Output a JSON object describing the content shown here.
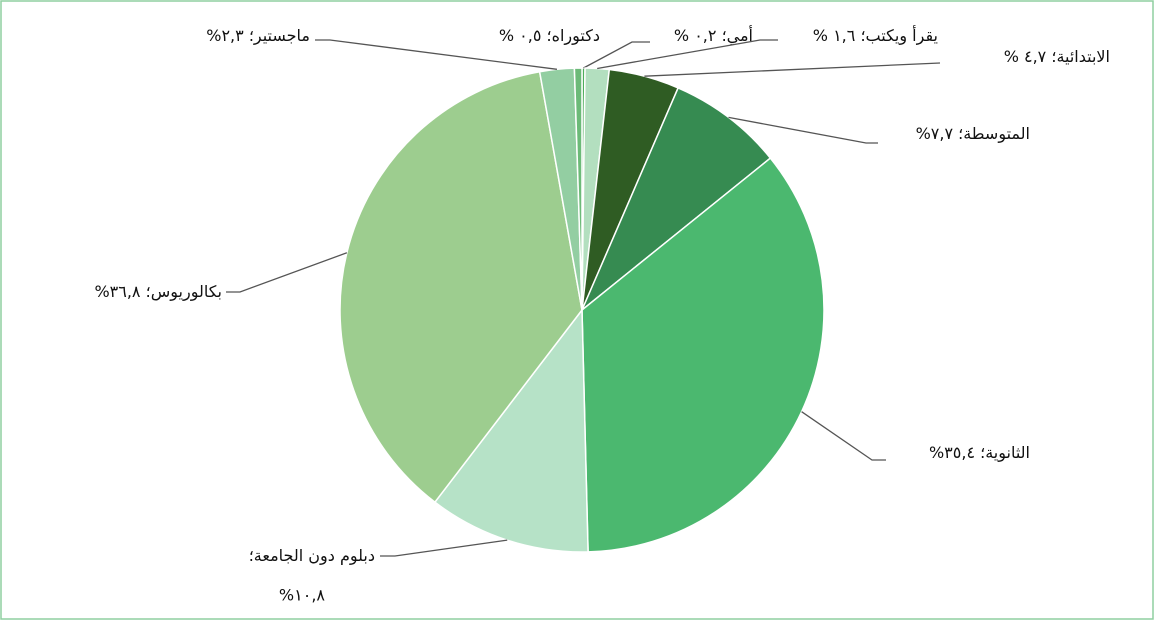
{
  "chart_data": {
    "type": "pie",
    "categories": [
      "أمي؛",
      "يقرأ ويكتب؛",
      "الابتدائية؛",
      "المتوسطة؛",
      "الثانوية؛",
      "دبلوم دون الجامعة؛",
      "بكالوريوس؛",
      "ماجستير؛",
      "دكتوراه؛"
    ],
    "values": [
      0.2,
      1.6,
      4.7,
      7.7,
      35.4,
      10.8,
      36.8,
      2.3,
      0.5
    ],
    "value_labels": [
      "٠,٢ %",
      "١,٦ %",
      "٤,٧ %",
      "٧,٧%",
      "٣٥,٤%",
      "١٠,٨%",
      "٣٦,٨%",
      "٢,٣%",
      "٠,٥ %"
    ],
    "colors": [
      "#4fae5c",
      "#b3dfbf",
      "#2f5c23",
      "#368b51",
      "#4bb86f",
      "#b6e2c7",
      "#9dcd8f",
      "#93cea2",
      "#6cba78"
    ]
  }
}
